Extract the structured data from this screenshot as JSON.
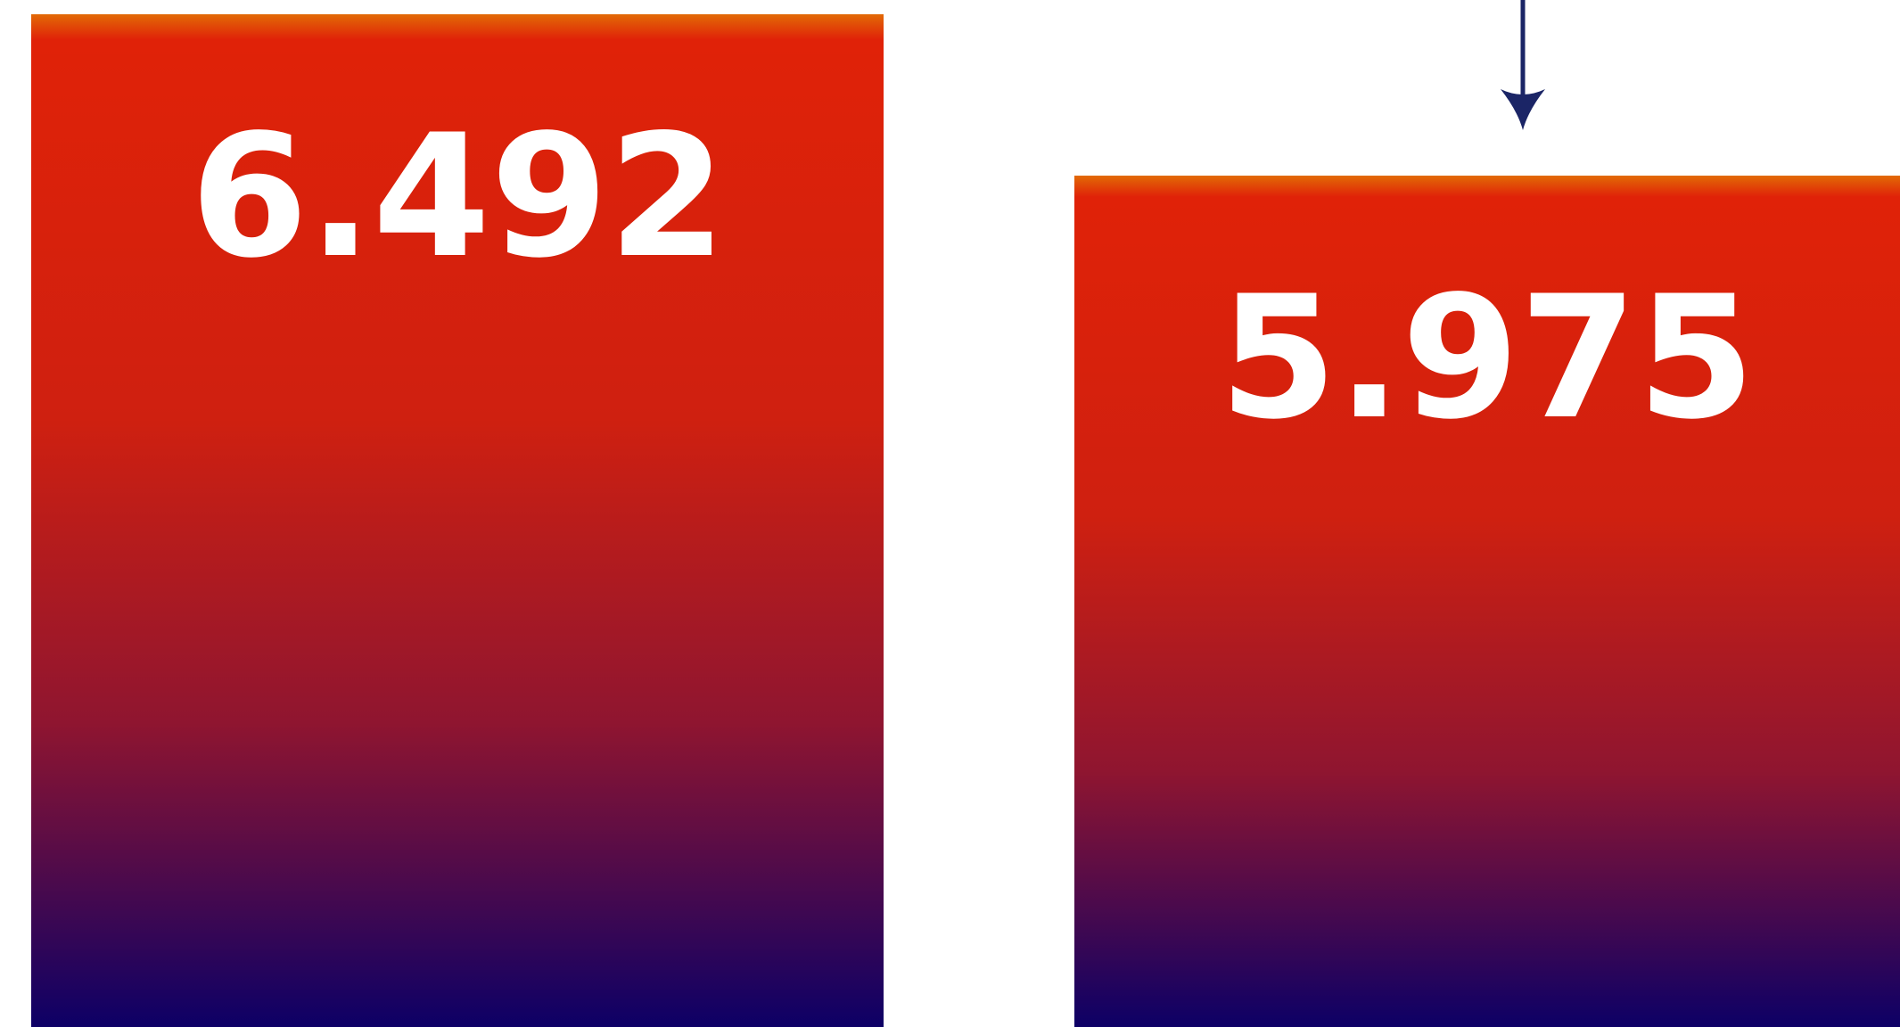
{
  "chart_data": {
    "type": "bar",
    "categories": [
      "",
      ""
    ],
    "values": [
      6.492,
      5.975
    ],
    "value_labels": [
      "6.492",
      "5.975"
    ],
    "title": "",
    "xlabel": "",
    "ylabel": "",
    "annotation": "down-arrow-icon",
    "colors": {
      "top_edge": "#E26A06",
      "upper": "#E02208",
      "lower": "#0D0066",
      "label": "#FFFFFF",
      "arrow": "#1B2566"
    }
  }
}
